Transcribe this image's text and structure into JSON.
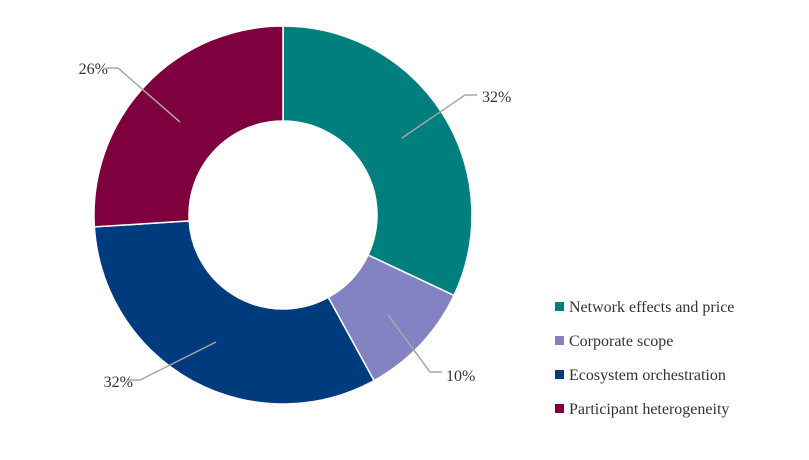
{
  "chart_data": {
    "type": "pie",
    "variant": "donut",
    "title": "",
    "legend_position": "right",
    "slices": [
      {
        "name": "Network effects and price",
        "value": 32,
        "label": "32%",
        "color": "#007F7F"
      },
      {
        "name": "Corporate scope",
        "value": 10,
        "label": "10%",
        "color": "#8383C3"
      },
      {
        "name": "Ecosystem orchestration",
        "value": 32,
        "label": "32%",
        "color": "#003B7D"
      },
      {
        "name": "Participant heterogeneity",
        "value": 26,
        "label": "26%",
        "color": "#7F003F"
      }
    ]
  }
}
